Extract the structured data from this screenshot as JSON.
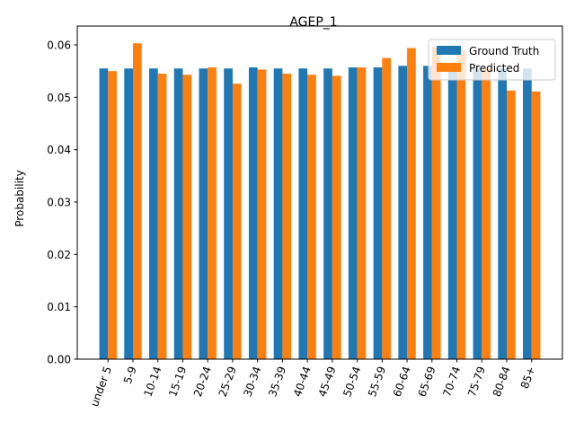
{
  "chart_data": {
    "type": "bar",
    "title": "AGEP_1",
    "xlabel": "",
    "ylabel": "Probability",
    "ylim": [
      0,
      0.0636
    ],
    "yticks": [
      0.0,
      0.01,
      0.02,
      0.03,
      0.04,
      0.05,
      0.06
    ],
    "ytick_labels": [
      "0.00",
      "0.01",
      "0.02",
      "0.03",
      "0.04",
      "0.05",
      "0.06"
    ],
    "categories": [
      "under 5",
      "5-9",
      "10-14",
      "15-19",
      "20-24",
      "25-29",
      "30-34",
      "35-39",
      "40-44",
      "45-49",
      "50-54",
      "55-59",
      "60-64",
      "65-69",
      "70-74",
      "75-79",
      "80-84",
      "85+"
    ],
    "series": [
      {
        "name": "Ground Truth",
        "color": "#1f77b4",
        "values": [
          0.0555,
          0.0555,
          0.0555,
          0.0555,
          0.0555,
          0.0555,
          0.0557,
          0.0555,
          0.0555,
          0.0555,
          0.0557,
          0.0557,
          0.056,
          0.056,
          0.0555,
          0.0555,
          0.0555,
          0.0555
        ]
      },
      {
        "name": "Predicted",
        "color": "#ff7f0e",
        "values": [
          0.055,
          0.0603,
          0.0545,
          0.0543,
          0.0557,
          0.0526,
          0.0553,
          0.0545,
          0.0543,
          0.0541,
          0.0557,
          0.0575,
          0.0594,
          0.0596,
          0.059,
          0.0555,
          0.0513,
          0.0511
        ]
      }
    ],
    "grid": false,
    "legend_position": "top-right",
    "xtick_rotation": "70 degrees"
  }
}
